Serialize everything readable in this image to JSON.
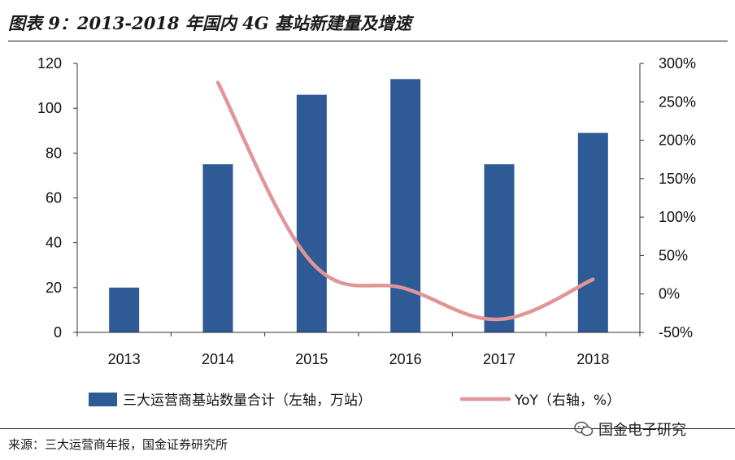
{
  "title": "图表 9：2013-2018 年国内 4G 基站新建量及增速",
  "source": "来源：三大运营商年报，国金证券研究所",
  "watermark": "国金电子研究",
  "colors": {
    "bar": "#2e5a96",
    "line": "#e29596",
    "axis": "#333333"
  },
  "chart_data": {
    "type": "bar",
    "categories": [
      "2013",
      "2014",
      "2015",
      "2016",
      "2017",
      "2018"
    ],
    "series": [
      {
        "name": "三大运营商基站数量合计（左轴，万站）",
        "type": "bar",
        "axis": "left",
        "values": [
          20,
          75,
          106,
          113,
          75,
          89
        ]
      },
      {
        "name": "YoY（右轴，%）",
        "type": "line",
        "axis": "right",
        "values": [
          null,
          275,
          41,
          7,
          -33,
          19
        ]
      }
    ],
    "left_axis": {
      "ylim": [
        0,
        120
      ],
      "ticks": [
        0,
        20,
        40,
        60,
        80,
        100,
        120
      ],
      "tick_labels": [
        "0",
        "20",
        "40",
        "60",
        "80",
        "100",
        "120"
      ]
    },
    "right_axis": {
      "ylim": [
        -50,
        300
      ],
      "ticks": [
        -50,
        0,
        50,
        100,
        150,
        200,
        250,
        300
      ],
      "tick_labels": [
        "-50%",
        "0%",
        "50%",
        "100%",
        "150%",
        "200%",
        "250%",
        "300%"
      ]
    },
    "grid": false,
    "legend_position": "bottom"
  }
}
